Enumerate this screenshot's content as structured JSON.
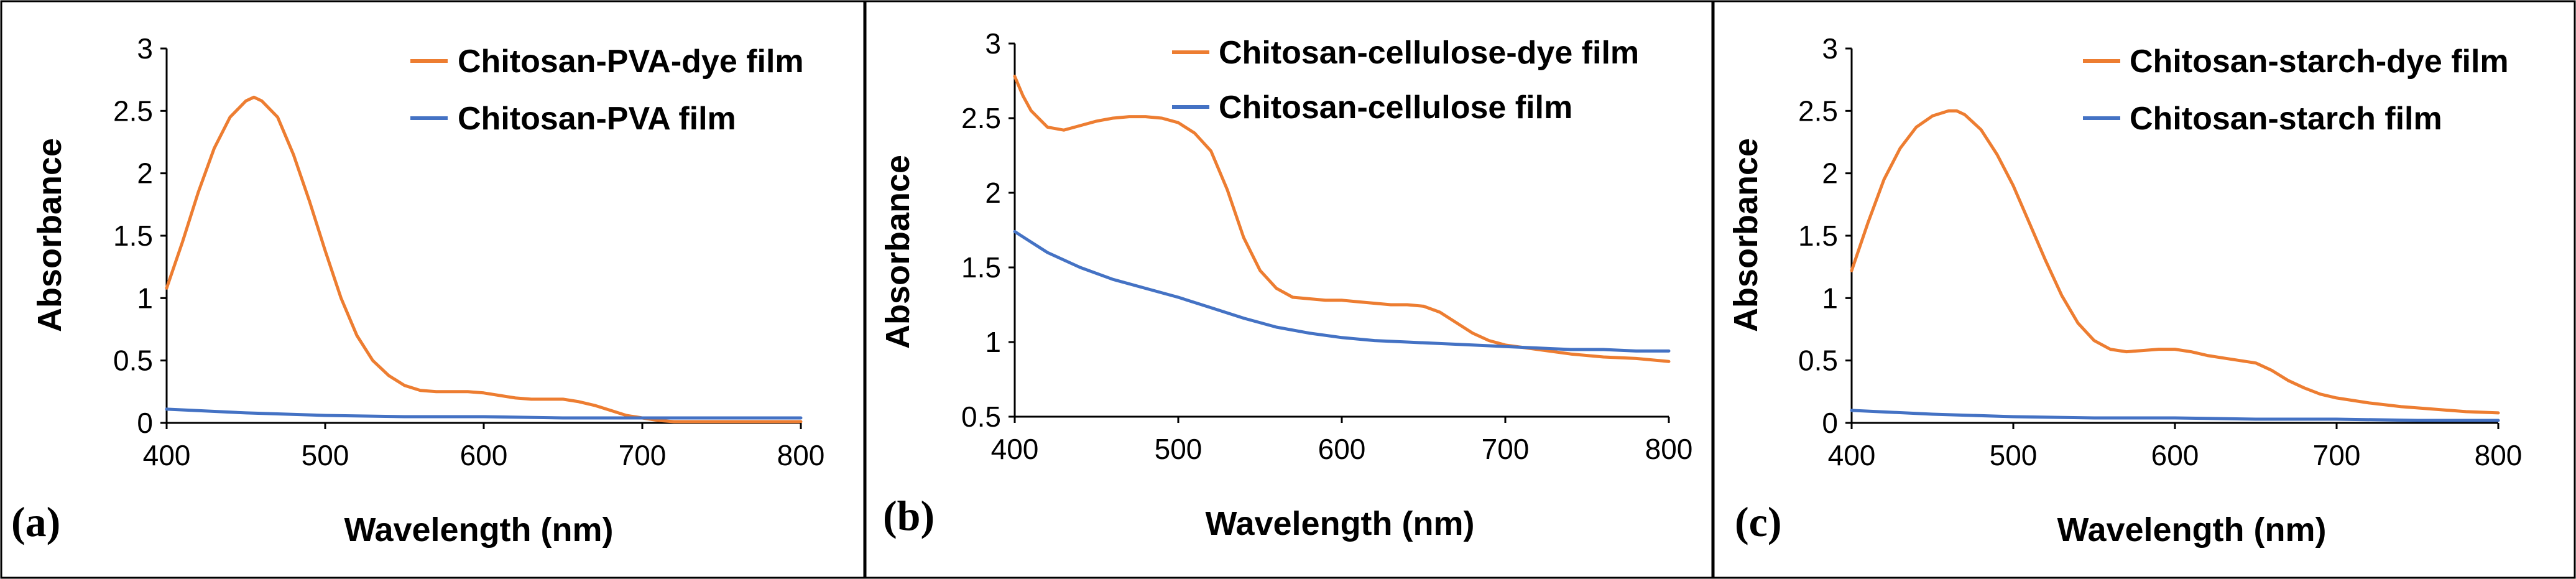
{
  "figure": {
    "colors": {
      "dye": "#ED7D31",
      "film": "#4472C4",
      "axis": "#000000"
    }
  },
  "chart_data": [
    {
      "type": "line",
      "panel_label": "(a)",
      "title": "",
      "xlabel": "Wavelength (nm)",
      "ylabel": "Absorbance",
      "xlim": [
        400,
        800
      ],
      "ylim": [
        0,
        3
      ],
      "xticks": [
        "400",
        "500",
        "600",
        "700",
        "800"
      ],
      "yticks": [
        "0",
        "0.5",
        "1",
        "1.5",
        "2",
        "2.5",
        "3"
      ],
      "yticks_values": [
        0,
        0.5,
        1,
        1.5,
        2,
        2.5,
        3
      ],
      "xticks_values": [
        400,
        500,
        600,
        700,
        800
      ],
      "legend_position": "top-right",
      "series": [
        {
          "name": "Chitosan-PVA-dye film",
          "color": "#ED7D31",
          "x": [
            400,
            410,
            420,
            430,
            440,
            450,
            455,
            460,
            470,
            480,
            490,
            500,
            510,
            520,
            530,
            540,
            550,
            560,
            570,
            580,
            590,
            600,
            610,
            620,
            630,
            640,
            650,
            660,
            670,
            680,
            690,
            700,
            710,
            720,
            740,
            760,
            780,
            800
          ],
          "y": [
            1.08,
            1.45,
            1.85,
            2.2,
            2.45,
            2.58,
            2.61,
            2.58,
            2.45,
            2.15,
            1.78,
            1.38,
            1.0,
            0.7,
            0.5,
            0.38,
            0.3,
            0.26,
            0.25,
            0.25,
            0.25,
            0.24,
            0.22,
            0.2,
            0.19,
            0.19,
            0.19,
            0.17,
            0.14,
            0.1,
            0.06,
            0.04,
            0.02,
            0.01,
            0.01,
            0.01,
            0.01,
            0.01
          ]
        },
        {
          "name": "Chitosan-PVA film",
          "color": "#4472C4",
          "x": [
            400,
            450,
            500,
            550,
            600,
            650,
            700,
            750,
            800
          ],
          "y": [
            0.11,
            0.08,
            0.06,
            0.05,
            0.05,
            0.04,
            0.04,
            0.04,
            0.04
          ]
        }
      ]
    },
    {
      "type": "line",
      "panel_label": "(b)",
      "title": "",
      "xlabel": "Wavelength (nm)",
      "ylabel": "Absorbance",
      "xlim": [
        400,
        800
      ],
      "ylim": [
        0.5,
        3
      ],
      "xticks": [
        "400",
        "500",
        "600",
        "700",
        "800"
      ],
      "yticks": [
        "0.5",
        "1",
        "1.5",
        "2",
        "2.5",
        "3"
      ],
      "yticks_values": [
        0.5,
        1,
        1.5,
        2,
        2.5,
        3
      ],
      "xticks_values": [
        400,
        500,
        600,
        700,
        800
      ],
      "legend_position": "top-right",
      "series": [
        {
          "name": "Chitosan-cellulose-dye film",
          "color": "#ED7D31",
          "x": [
            400,
            405,
            410,
            420,
            430,
            440,
            450,
            460,
            470,
            480,
            490,
            500,
            510,
            520,
            530,
            540,
            550,
            560,
            570,
            580,
            590,
            600,
            610,
            620,
            630,
            640,
            650,
            660,
            670,
            680,
            690,
            700,
            720,
            740,
            760,
            780,
            800
          ],
          "y": [
            2.78,
            2.65,
            2.55,
            2.44,
            2.42,
            2.45,
            2.48,
            2.5,
            2.51,
            2.51,
            2.5,
            2.47,
            2.4,
            2.28,
            2.02,
            1.7,
            1.48,
            1.36,
            1.3,
            1.29,
            1.28,
            1.28,
            1.27,
            1.26,
            1.25,
            1.25,
            1.24,
            1.2,
            1.13,
            1.06,
            1.01,
            0.98,
            0.95,
            0.92,
            0.9,
            0.89,
            0.87
          ]
        },
        {
          "name": "Chitosan-cellulose film",
          "color": "#4472C4",
          "x": [
            400,
            420,
            440,
            460,
            480,
            500,
            520,
            540,
            560,
            580,
            600,
            620,
            640,
            660,
            680,
            700,
            720,
            740,
            760,
            780,
            800
          ],
          "y": [
            1.74,
            1.6,
            1.5,
            1.42,
            1.36,
            1.3,
            1.23,
            1.16,
            1.1,
            1.06,
            1.03,
            1.01,
            1.0,
            0.99,
            0.98,
            0.97,
            0.96,
            0.95,
            0.95,
            0.94,
            0.94
          ]
        }
      ]
    },
    {
      "type": "line",
      "panel_label": "(c)",
      "title": "",
      "xlabel": "Wavelength (nm)",
      "ylabel": "Absorbance",
      "xlim": [
        400,
        800
      ],
      "ylim": [
        0,
        3
      ],
      "xticks": [
        "400",
        "500",
        "600",
        "700",
        "800"
      ],
      "yticks": [
        "0",
        "0.5",
        "1",
        "1.5",
        "2",
        "2.5",
        "3"
      ],
      "yticks_values": [
        0,
        0.5,
        1,
        1.5,
        2,
        2.5,
        3
      ],
      "xticks_values": [
        400,
        500,
        600,
        700,
        800
      ],
      "legend_position": "top-right",
      "series": [
        {
          "name": "Chitosan-starch-dye film",
          "color": "#ED7D31",
          "x": [
            400,
            410,
            420,
            430,
            440,
            450,
            460,
            465,
            470,
            480,
            490,
            500,
            510,
            520,
            530,
            540,
            550,
            560,
            570,
            580,
            590,
            600,
            610,
            620,
            630,
            640,
            650,
            660,
            670,
            680,
            690,
            700,
            720,
            740,
            760,
            780,
            800
          ],
          "y": [
            1.22,
            1.6,
            1.95,
            2.2,
            2.37,
            2.46,
            2.5,
            2.5,
            2.47,
            2.35,
            2.15,
            1.9,
            1.6,
            1.3,
            1.02,
            0.8,
            0.66,
            0.59,
            0.57,
            0.58,
            0.59,
            0.59,
            0.57,
            0.54,
            0.52,
            0.5,
            0.48,
            0.42,
            0.34,
            0.28,
            0.23,
            0.2,
            0.16,
            0.13,
            0.11,
            0.09,
            0.08
          ]
        },
        {
          "name": "Chitosan-starch film",
          "color": "#4472C4",
          "x": [
            400,
            450,
            500,
            550,
            600,
            650,
            700,
            750,
            800
          ],
          "y": [
            0.1,
            0.07,
            0.05,
            0.04,
            0.04,
            0.03,
            0.03,
            0.02,
            0.02
          ]
        }
      ]
    }
  ]
}
